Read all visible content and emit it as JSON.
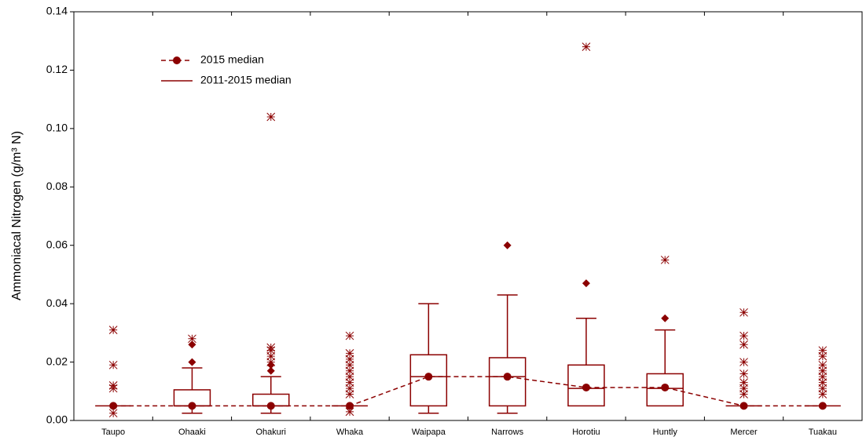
{
  "chart_data": {
    "type": "box",
    "y_label": "Ammoniacal Nitrogen (g/m³ N)",
    "categories": [
      "Taupo",
      "Ohaaki",
      "Ohakuri",
      "Whaka",
      "Waipapa",
      "Narrows",
      "Horotiu",
      "Huntly",
      "Mercer",
      "Tuakau"
    ],
    "ylim": [
      0,
      0.14
    ],
    "yticks": [
      {
        "value": 0,
        "label": "0.00"
      },
      {
        "value": 0.02,
        "label": "0.02"
      },
      {
        "value": 0.04,
        "label": "0.04"
      },
      {
        "value": 0.06,
        "label": "0.06"
      },
      {
        "value": 0.08,
        "label": "0.08"
      },
      {
        "value": 0.1,
        "label": "0.10"
      },
      {
        "value": 0.12,
        "label": "0.12"
      },
      {
        "value": 0.14,
        "label": "0.14"
      }
    ],
    "boxes": {
      "name": "2011-2015 median",
      "color": "#8b0000",
      "min": [
        0.005,
        0.0025,
        0.0025,
        0.005,
        0.0025,
        0.0025,
        0.005,
        0.005,
        0.005,
        0.005
      ],
      "q1": [
        0.005,
        0.005,
        0.005,
        0.005,
        0.005,
        0.005,
        0.005,
        0.005,
        0.005,
        0.005
      ],
      "median": [
        0.005,
        0.005,
        0.005,
        0.005,
        0.015,
        0.015,
        0.011,
        0.011,
        0.005,
        0.005
      ],
      "q3": [
        0.005,
        0.0105,
        0.009,
        0.005,
        0.0225,
        0.0215,
        0.019,
        0.016,
        0.005,
        0.005
      ],
      "max": [
        0.005,
        0.018,
        0.015,
        0.005,
        0.04,
        0.043,
        0.035,
        0.031,
        0.005,
        0.005
      ]
    },
    "series": [
      {
        "name": "2015 median",
        "color": "#8b0000",
        "values": [
          0.005,
          0.005,
          0.005,
          0.005,
          0.015,
          0.015,
          0.0113,
          0.0113,
          0.005,
          0.005
        ]
      }
    ],
    "outliers": [
      [],
      [
        0.02,
        0.026
      ],
      [
        0.017,
        0.019
      ],
      [],
      [],
      [
        0.06
      ],
      [
        0.047
      ],
      [
        0.035
      ],
      [],
      []
    ],
    "extremes": [
      [
        0.031,
        0.019,
        0.012,
        0.011,
        0.0025
      ],
      [
        0.028
      ],
      [
        0.02,
        0.022,
        0.024,
        0.025,
        0.104
      ],
      [
        0.029,
        0.023,
        0.021,
        0.019,
        0.017,
        0.015,
        0.013,
        0.011,
        0.009,
        0.003
      ],
      [],
      [],
      [
        0.128
      ],
      [
        0.055
      ],
      [
        0.037,
        0.029,
        0.026,
        0.02,
        0.016,
        0.013,
        0.011,
        0.009
      ],
      [
        0.024,
        0.022,
        0.019,
        0.017,
        0.015,
        0.013,
        0.011,
        0.009
      ]
    ]
  }
}
